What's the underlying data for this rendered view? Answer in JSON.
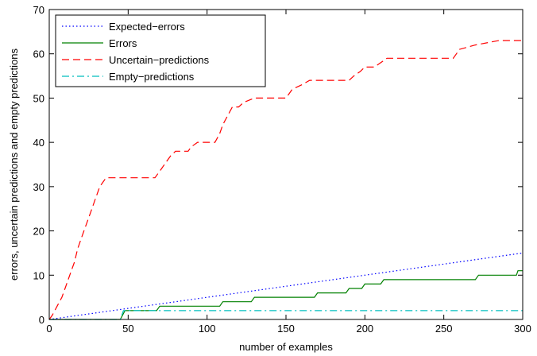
{
  "chart_data": {
    "type": "line",
    "xlabel": "number of examples",
    "ylabel": "errors, uncertain predictions and empty predictions",
    "xlim": [
      0,
      300
    ],
    "ylim": [
      0,
      70
    ],
    "xticks": [
      0,
      50,
      100,
      150,
      200,
      250,
      300
    ],
    "yticks": [
      0,
      10,
      20,
      30,
      40,
      50,
      60,
      70
    ],
    "legend_position": "top-left",
    "grid": false,
    "series": [
      {
        "name": "Expected−errors",
        "style": "dotted",
        "color": "#0000ff",
        "points": [
          [
            0,
            0
          ],
          [
            300,
            15
          ]
        ]
      },
      {
        "name": "Errors",
        "style": "solid",
        "color": "#008000",
        "points": [
          [
            0,
            0
          ],
          [
            45,
            0
          ],
          [
            48,
            2
          ],
          [
            68,
            2
          ],
          [
            70,
            3
          ],
          [
            108,
            3
          ],
          [
            110,
            4
          ],
          [
            128,
            4
          ],
          [
            130,
            5
          ],
          [
            168,
            5
          ],
          [
            170,
            6
          ],
          [
            188,
            6
          ],
          [
            190,
            7
          ],
          [
            198,
            7
          ],
          [
            200,
            8
          ],
          [
            210,
            8
          ],
          [
            212,
            9
          ],
          [
            270,
            9
          ],
          [
            272,
            10
          ],
          [
            296,
            10
          ],
          [
            297,
            11
          ],
          [
            300,
            11
          ]
        ]
      },
      {
        "name": "Uncertain−predictions",
        "style": "dashed",
        "color": "#ff0000",
        "points": [
          [
            0,
            0
          ],
          [
            2,
            1
          ],
          [
            5,
            3
          ],
          [
            8,
            5
          ],
          [
            10,
            7
          ],
          [
            13,
            10
          ],
          [
            16,
            13
          ],
          [
            18,
            16
          ],
          [
            21,
            19
          ],
          [
            24,
            22
          ],
          [
            26,
            24
          ],
          [
            29,
            27
          ],
          [
            32,
            30
          ],
          [
            36,
            32
          ],
          [
            67,
            32
          ],
          [
            69,
            33
          ],
          [
            71,
            34
          ],
          [
            73,
            35
          ],
          [
            75,
            36
          ],
          [
            77,
            37
          ],
          [
            80,
            38
          ],
          [
            88,
            38
          ],
          [
            90,
            39
          ],
          [
            94,
            40
          ],
          [
            105,
            40
          ],
          [
            108,
            42
          ],
          [
            110,
            44
          ],
          [
            113,
            46
          ],
          [
            116,
            48
          ],
          [
            120,
            48
          ],
          [
            123,
            49
          ],
          [
            130,
            50
          ],
          [
            150,
            50
          ],
          [
            152,
            51
          ],
          [
            154,
            52
          ],
          [
            160,
            53
          ],
          [
            165,
            54
          ],
          [
            190,
            54
          ],
          [
            193,
            55
          ],
          [
            197,
            56
          ],
          [
            200,
            57
          ],
          [
            206,
            57
          ],
          [
            210,
            58
          ],
          [
            214,
            59
          ],
          [
            256,
            59
          ],
          [
            260,
            61
          ],
          [
            270,
            62
          ],
          [
            285,
            63
          ],
          [
            300,
            63
          ]
        ]
      },
      {
        "name": "Empty−predictions",
        "style": "dashdot",
        "color": "#00bfbf",
        "points": [
          [
            0,
            0
          ],
          [
            45,
            0
          ],
          [
            47,
            2
          ],
          [
            300,
            2
          ]
        ]
      }
    ]
  }
}
